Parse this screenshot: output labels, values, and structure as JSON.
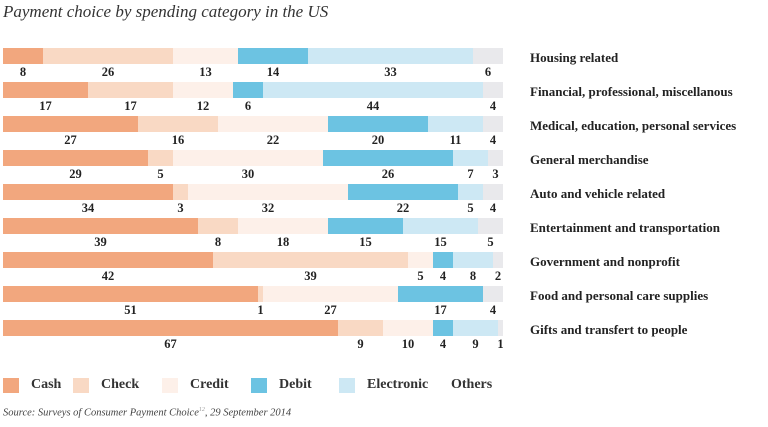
{
  "chart_data": {
    "type": "bar",
    "orientation": "horizontal",
    "stacked": true,
    "title": "Payment choice by spending category in the US",
    "xlabel": "",
    "ylabel": "",
    "xlim": [
      0,
      100
    ],
    "unit": "percent",
    "grid": false,
    "legend_position": "bottom",
    "categories": [
      "Housing related",
      "Financial, professional, miscellanous",
      "Medical, education, personal services",
      "General merchandise",
      "Auto and vehicle related",
      "Entertainment and transportation",
      "Government and nonprofit",
      "Food and personal care supplies",
      "Gifts and transfert to people"
    ],
    "series": [
      {
        "name": "Cash",
        "color": "#f2a77e",
        "values": [
          8,
          17,
          27,
          29,
          34,
          39,
          42,
          51,
          67
        ]
      },
      {
        "name": "Check",
        "color": "#f9d9c4",
        "values": [
          26,
          17,
          16,
          5,
          3,
          8,
          39,
          1,
          9
        ]
      },
      {
        "name": "Credit",
        "color": "#fdf0e9",
        "values": [
          13,
          12,
          22,
          30,
          32,
          18,
          5,
          27,
          10
        ]
      },
      {
        "name": "Debit",
        "color": "#6cc3e2",
        "values": [
          14,
          6,
          20,
          26,
          22,
          15,
          4,
          17,
          4
        ]
      },
      {
        "name": "Electronic",
        "color": "#cde8f4",
        "values": [
          33,
          44,
          11,
          7,
          5,
          15,
          8,
          0,
          9
        ]
      },
      {
        "name": "Others",
        "color": "#e9e9ec",
        "values": [
          6,
          4,
          4,
          3,
          4,
          5,
          2,
          4,
          1
        ]
      }
    ],
    "hidden_labels": {
      "Food and personal care supplies": [
        "Electronic"
      ]
    }
  },
  "legend": {
    "items": [
      {
        "label": "Cash",
        "color": "#f2a77e",
        "swatch": true
      },
      {
        "label": "Check",
        "color": "#f9d9c4",
        "swatch": true
      },
      {
        "label": "Credit",
        "color": "#fdf0e9",
        "swatch": true
      },
      {
        "label": "Debit",
        "color": "#6cc3e2",
        "swatch": true
      },
      {
        "label": "Electronic",
        "color": "#cde8f4",
        "swatch": true
      },
      {
        "label": "Others",
        "color": "#ffffff",
        "swatch": false
      }
    ]
  },
  "source": {
    "text": "Source: Surveys of Consumer Payment Choice",
    "superscript": "12",
    "date": ", 29 September 2014"
  }
}
